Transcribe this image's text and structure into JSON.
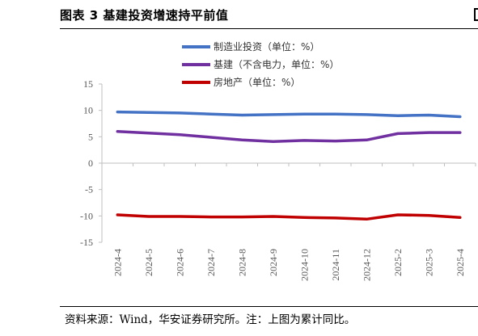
{
  "figure": {
    "title": "图表 3 基建投资增速持平前值",
    "source": "资料来源：Wind，华安证券研究所。注：上图为累计同比。"
  },
  "chart_data": {
    "type": "line",
    "categories": [
      "2024-4",
      "2024-5",
      "2024-6",
      "2024-7",
      "2024-8",
      "2024-9",
      "2024-10",
      "2024-11",
      "2024-12",
      "2025-2",
      "2025-3",
      "2025-4"
    ],
    "series": [
      {
        "name": "制造业投资（单位：%）",
        "color": "#4472C4",
        "values": [
          9.7,
          9.6,
          9.5,
          9.3,
          9.1,
          9.2,
          9.3,
          9.3,
          9.2,
          9.0,
          9.1,
          8.8
        ]
      },
      {
        "name": "基建（不含电力，单位：%）",
        "color": "#7030A0",
        "values": [
          6.0,
          5.7,
          5.4,
          4.9,
          4.4,
          4.1,
          4.3,
          4.2,
          4.4,
          5.6,
          5.8,
          5.8
        ]
      },
      {
        "name": "房地产（单位：%）",
        "color": "#C00000",
        "values": [
          -9.8,
          -10.1,
          -10.1,
          -10.2,
          -10.2,
          -10.1,
          -10.3,
          -10.4,
          -10.6,
          -9.8,
          -9.9,
          -10.3
        ]
      }
    ],
    "yticks": [
      "15",
      "10",
      "5",
      "0",
      "-5",
      "-10",
      "-15"
    ],
    "ylim": [
      -15,
      15
    ],
    "legend_position": "top",
    "grid": false
  }
}
